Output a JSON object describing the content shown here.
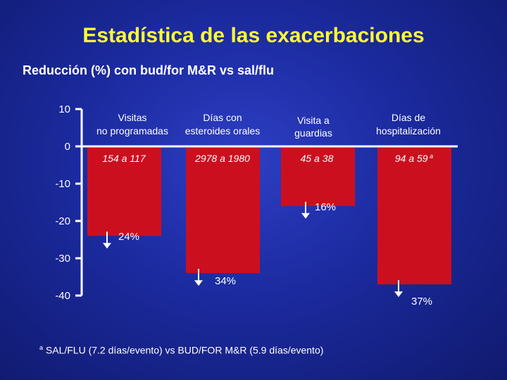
{
  "colors": {
    "title": "#ffff33",
    "bar": "#cc0f1f",
    "axis": "#ffffff",
    "background": "#1b2a9e"
  },
  "slide": {
    "title": "Estadística de las exacerbaciones",
    "subtitle": "Reducción (%) con bud/for M&R vs sal/flu",
    "footnote_marker": "a",
    "footnote": "SAL/FLU (7.2 días/evento) vs BUD/FOR M&R (5.9 días/evento)"
  },
  "chart_data": {
    "type": "bar",
    "title": "Reducción (%) con bud/for M&R vs sal/flu",
    "ylim": [
      -40,
      10
    ],
    "yticks": [
      10,
      0,
      -10,
      -20,
      -30,
      -40
    ],
    "ytick_labels": [
      "10",
      "0",
      "-10",
      "-20",
      "-30",
      "-40"
    ],
    "categories": [
      [
        "Visitas",
        "no programadas"
      ],
      [
        "Días con",
        "esteroides orales"
      ],
      [
        "Visita a",
        "guardias"
      ],
      [
        "Días de",
        "hospitalización"
      ]
    ],
    "values": [
      -24,
      -34,
      -16,
      -37
    ],
    "value_labels": [
      "24%",
      "34%",
      "16%",
      "37%"
    ],
    "ranges": [
      "154 a 117",
      "2978 a 1980",
      "45 a 38",
      "94 a 59"
    ],
    "range_markers": [
      "",
      "",
      "",
      "a"
    ],
    "grid": false,
    "legend": "none"
  }
}
